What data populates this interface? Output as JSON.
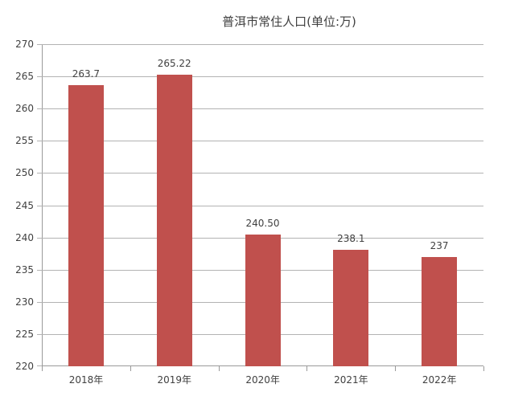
{
  "chart_data": {
    "type": "bar",
    "title": "普洱市常住人口(单位:万)",
    "categories": [
      "2018年",
      "2019年",
      "2020年",
      "2021年",
      "2022年"
    ],
    "values": [
      263.7,
      265.22,
      240.5,
      238.1,
      237
    ],
    "value_labels": [
      "263.7",
      "265.22",
      "240.50",
      "238.1",
      "237"
    ],
    "xlabel": "",
    "ylabel": "",
    "ylim": [
      220,
      270
    ],
    "yticks": [
      220,
      225,
      230,
      235,
      240,
      245,
      250,
      255,
      260,
      265,
      270
    ],
    "grid": true,
    "legend": null,
    "bar_color": "#c0504d"
  }
}
